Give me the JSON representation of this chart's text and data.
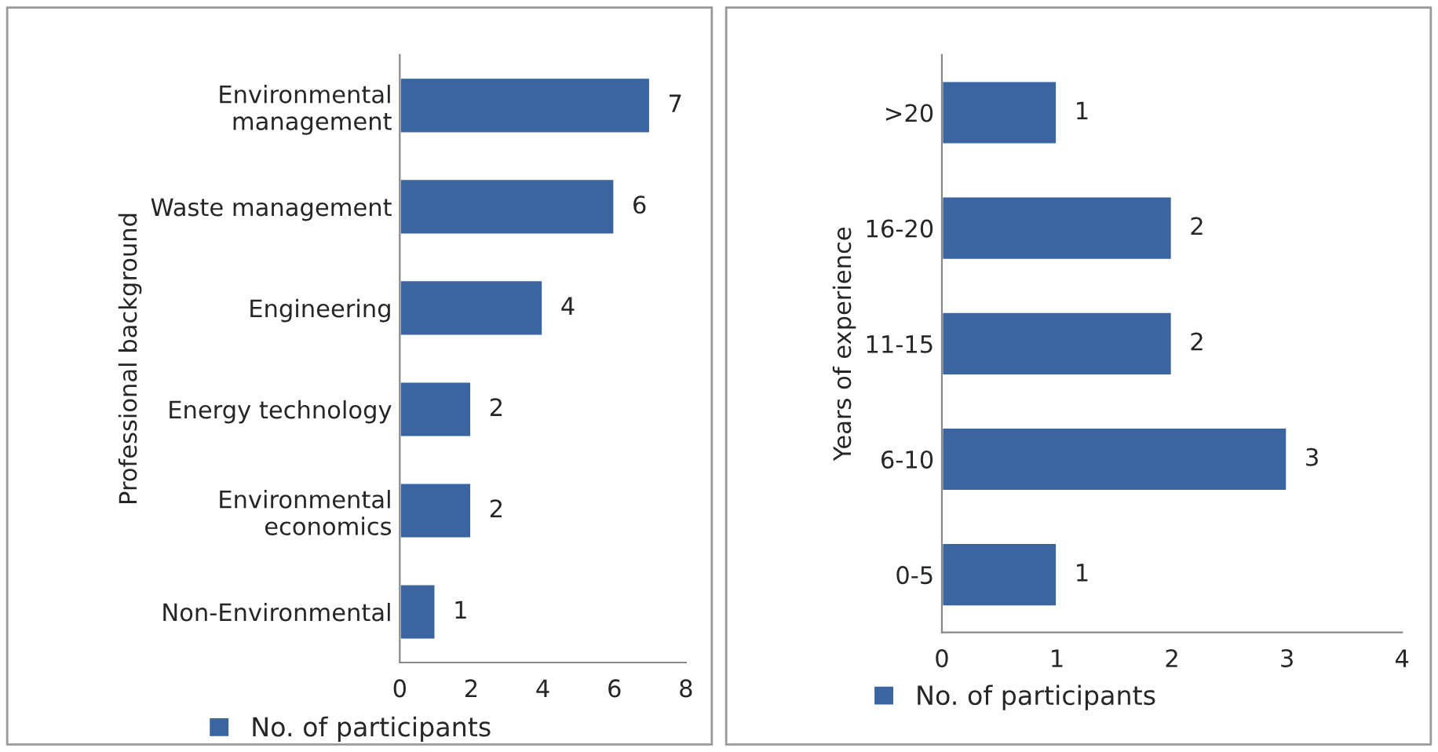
{
  "chart_data": [
    {
      "type": "bar",
      "orientation": "horizontal",
      "ylabel": "Professional background",
      "categories": [
        "Environmental\nmanagement",
        "Waste management",
        "Engineering",
        "Energy technology",
        "Environmental\neconomics",
        "Non-Environmental"
      ],
      "series": [
        {
          "name": "No. of participants",
          "color": "#3a65a0",
          "values": [
            7,
            6,
            4,
            2,
            2,
            1
          ]
        }
      ],
      "xlim": [
        0,
        8
      ],
      "xticks": [
        0,
        2,
        4,
        6,
        8
      ],
      "data_labels": true,
      "legend": "bottom"
    },
    {
      "type": "bar",
      "orientation": "horizontal",
      "ylabel": "Years of experience",
      "categories": [
        ">20",
        "16-20",
        "11-15",
        "6-10",
        "0-5"
      ],
      "series": [
        {
          "name": "No. of participants",
          "color": "#3a65a0",
          "values": [
            1,
            2,
            2,
            3,
            1
          ]
        }
      ],
      "xlim": [
        0,
        4
      ],
      "xticks": [
        0,
        1,
        2,
        3,
        4
      ],
      "data_labels": true,
      "legend": "bottom"
    }
  ]
}
